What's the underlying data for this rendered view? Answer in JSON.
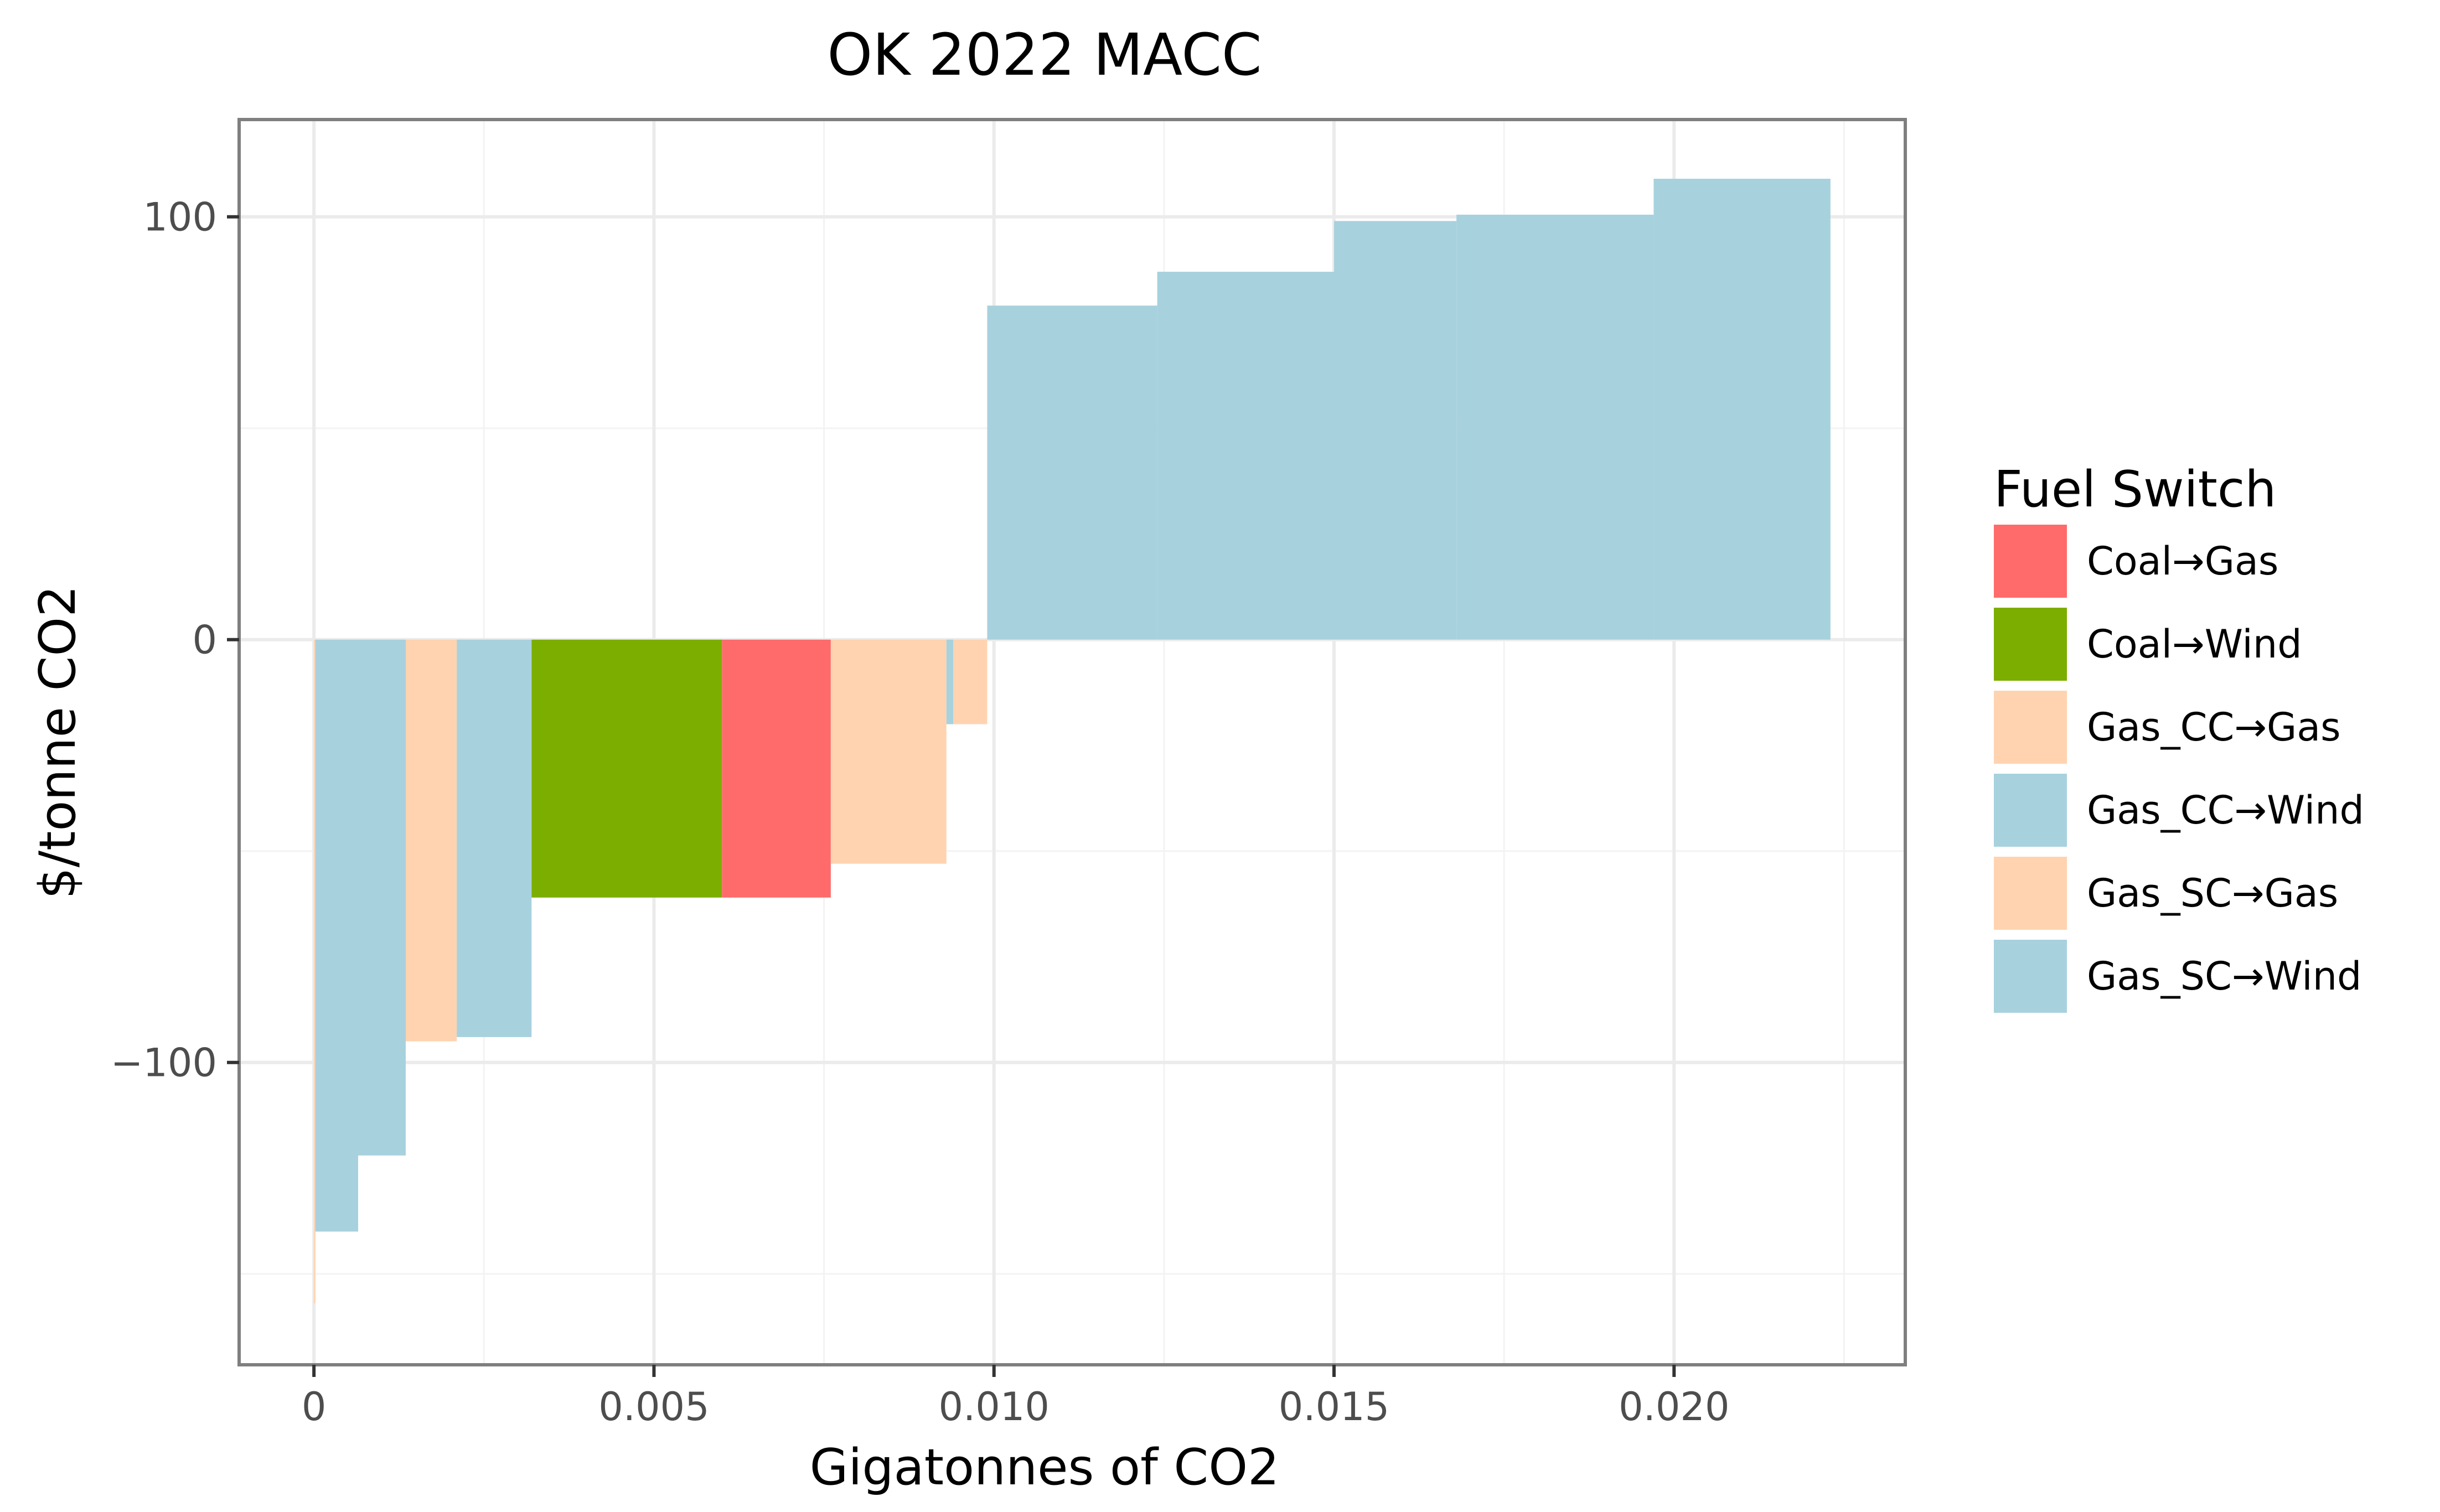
{
  "chart_data": {
    "type": "bar",
    "title": "OK 2022 MACC",
    "xlabel": "Gigatonnes of CO2",
    "ylabel": "$/tonne CO2",
    "xlim": [
      -0.0011,
      0.0234
    ],
    "ylim": [
      -171.5,
      123
    ],
    "x_ticks": [
      0,
      0.005,
      0.01,
      0.015,
      0.02
    ],
    "x_tick_labels": [
      "0",
      "0.005",
      "0.010",
      "0.015",
      "0.020"
    ],
    "y_ticks": [
      -100,
      0,
      100
    ],
    "y_tick_labels": [
      "−100",
      "0",
      "100"
    ],
    "grid": true,
    "legend": {
      "title": "Fuel Switch",
      "placement": "right",
      "entries": [
        {
          "label": "Coal→Gas",
          "color": "#ff6b6b"
        },
        {
          "label": "Coal→Wind",
          "color": "#7cae00"
        },
        {
          "label": "Gas_CC→Gas",
          "color": "#ffd3b0"
        },
        {
          "label": "Gas_CC→Wind",
          "color": "#a8d1de"
        },
        {
          "label": "Gas_SC→Gas",
          "color": "#ffd3b0"
        },
        {
          "label": "Gas_SC→Wind",
          "color": "#a8d1de"
        }
      ]
    },
    "bars": [
      {
        "x0": 0.0,
        "x1": 2e-05,
        "y": -157,
        "series": "Gas_SC→Gas"
      },
      {
        "x0": 2e-05,
        "x1": 0.00065,
        "y": -140,
        "series": "Gas_SC→Wind"
      },
      {
        "x0": 0.00065,
        "x1": 0.00135,
        "y": -122,
        "series": "Gas_CC→Wind"
      },
      {
        "x0": 0.00135,
        "x1": 0.0021,
        "y": -95,
        "series": "Gas_CC→Gas"
      },
      {
        "x0": 0.0021,
        "x1": 0.0032,
        "y": -94,
        "series": "Gas_CC→Wind"
      },
      {
        "x0": 0.0032,
        "x1": 0.006,
        "y": -61,
        "series": "Coal→Wind"
      },
      {
        "x0": 0.006,
        "x1": 0.0076,
        "y": -61,
        "series": "Coal→Gas"
      },
      {
        "x0": 0.0076,
        "x1": 0.0093,
        "y": -53,
        "series": "Gas_CC→Gas"
      },
      {
        "x0": 0.0093,
        "x1": 0.0094,
        "y": -20,
        "series": "Gas_CC→Wind"
      },
      {
        "x0": 0.0094,
        "x1": 0.0099,
        "y": -20,
        "series": "Gas_SC→Gas"
      },
      {
        "x0": 0.0099,
        "x1": 0.0124,
        "y": 79,
        "series": "Gas_CC→Wind"
      },
      {
        "x0": 0.0124,
        "x1": 0.015,
        "y": 87,
        "series": "Gas_CC→Wind"
      },
      {
        "x0": 0.015,
        "x1": 0.0168,
        "y": 99,
        "series": "Gas_CC→Wind"
      },
      {
        "x0": 0.0168,
        "x1": 0.0197,
        "y": 100.5,
        "series": "Gas_CC→Wind"
      },
      {
        "x0": 0.0197,
        "x1": 0.0223,
        "y": 109,
        "series": "Gas_CC→Wind"
      }
    ]
  }
}
